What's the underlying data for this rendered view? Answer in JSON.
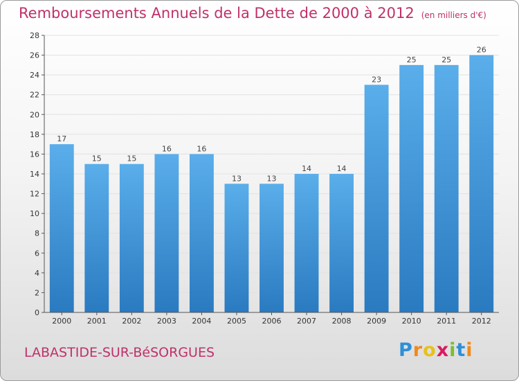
{
  "header": {
    "title": "Remboursements Annuels de la Dette de 2000 à 2012",
    "unit": "(en milliers d'€)"
  },
  "footer": {
    "commune": "LABASTIDE-SUR-BéSORGUES",
    "logo": {
      "letters": [
        {
          "char": "P",
          "color": "#2e8fd8"
        },
        {
          "char": "r",
          "color": "#ef8a1c"
        },
        {
          "char": "o",
          "color": "#e8c11a"
        },
        {
          "char": "x",
          "color": "#d81b60"
        },
        {
          "char": "i",
          "color": "#7cbd2f"
        },
        {
          "char": "t",
          "color": "#2e8fd8"
        },
        {
          "char": "i",
          "color": "#ef8a1c"
        }
      ]
    }
  },
  "chart_data": {
    "type": "bar",
    "categories": [
      "2000",
      "2001",
      "2002",
      "2003",
      "2004",
      "2005",
      "2006",
      "2007",
      "2008",
      "2009",
      "2010",
      "2011",
      "2012"
    ],
    "values": [
      17,
      15,
      15,
      16,
      16,
      13,
      13,
      14,
      14,
      23,
      25,
      25,
      26
    ],
    "ylim": [
      0,
      28
    ],
    "yticks": [
      0,
      2,
      4,
      6,
      8,
      10,
      12,
      14,
      16,
      18,
      20,
      22,
      24,
      26,
      28
    ],
    "grid": true,
    "bar_color_top": "#5aaeea",
    "bar_color_bottom": "#2a7ac0",
    "title_color": "#c0306a"
  }
}
